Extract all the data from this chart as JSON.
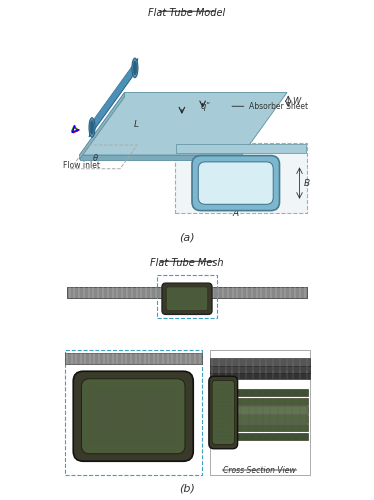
{
  "title_a": "Flat Tube Model",
  "title_b": "Flat Tube Mesh",
  "label_a": "(a)",
  "label_b": "(b)",
  "label_cross": "Cross Section View",
  "label_flow_inlet": "Flow inlet",
  "label_absorber": "Absorber Sheet",
  "label_L": "L",
  "label_W": "W",
  "label_q": "qʺ",
  "label_theta": "θ",
  "label_A": "A",
  "label_B": "B",
  "bg_color": "#ffffff",
  "plate_top_color": "#a8ccd7",
  "plate_side_color": "#7baaba",
  "tube_color": "#4a90b8",
  "tube_dark": "#2a6080",
  "tube_inner_color": "#c5dde8",
  "mesh_dark": "#3a3a2a",
  "mesh_green": "#4a5c3a",
  "mesh_light_green": "#6a7c5a",
  "mesh_gray": "#888880",
  "mesh_plate_gray": "#888888",
  "dashed_color": "#40a0c0",
  "arrow_color": "#222222",
  "dim_color": "#333333",
  "font_size_title": 7,
  "font_size_label": 6,
  "font_size_sub": 7
}
